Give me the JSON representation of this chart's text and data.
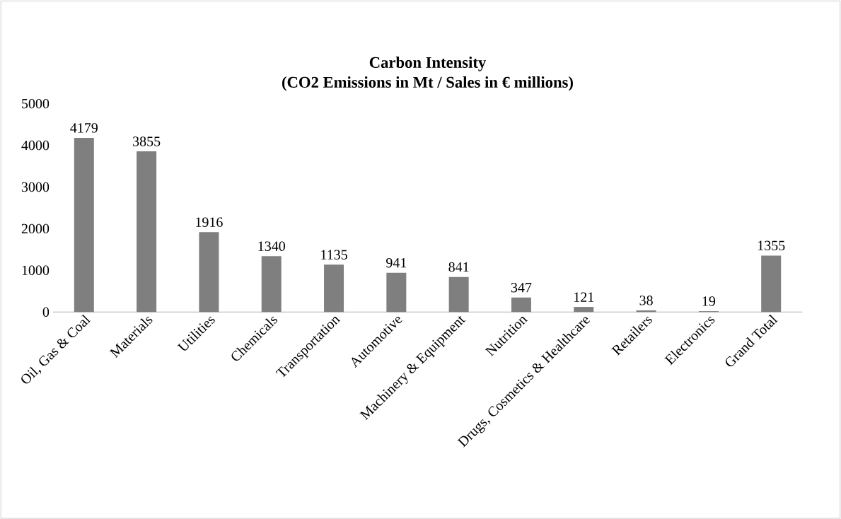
{
  "chart_data": {
    "type": "bar",
    "title": "Carbon Intensity",
    "subtitle": "(CO2 Emissions in Mt / Sales in € millions)",
    "categories": [
      "Oil, Gas & Coal",
      "Materials",
      "Utilities",
      "Chemicals",
      "Transportation",
      "Automotive",
      "Machinery & Equipment",
      "Nutrition",
      "Drugs, Cosmetics & Healthcare",
      "Retailers",
      "Electronics",
      "Grand Total"
    ],
    "values": [
      4179,
      3855,
      1916,
      1340,
      1135,
      941,
      841,
      347,
      121,
      38,
      19,
      1355
    ],
    "color": "#7f7f7f",
    "ylim": [
      0,
      5000
    ],
    "yticks": [
      0,
      1000,
      2000,
      3000,
      4000,
      5000
    ],
    "data_labels": true
  }
}
